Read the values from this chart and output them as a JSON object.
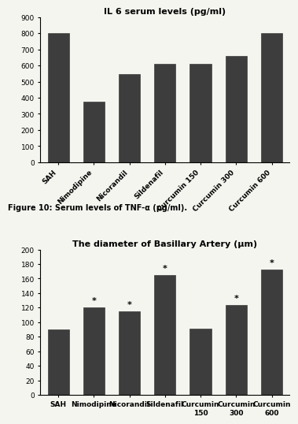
{
  "chart1": {
    "title": "IL 6 serum levels (pg/ml)",
    "categories": [
      "SAH",
      "Nimodipine",
      "Nicorandil",
      "Sildenafil",
      "Curcumin 150",
      "Curcumin 300",
      "Curcumin 600"
    ],
    "values": [
      800,
      375,
      545,
      610,
      610,
      660,
      800
    ],
    "ylim": [
      0,
      900
    ],
    "yticks": [
      0,
      100,
      200,
      300,
      400,
      500,
      600,
      700,
      800,
      900
    ],
    "bar_color": "#3d3d3d",
    "bar_edge_color": "#3d3d3d",
    "caption": "Figure 10: Serum levels of TNF-α (pg/ml)."
  },
  "chart2": {
    "title": "The diameter of Basillary Artery (μm)",
    "categories": [
      "SAH",
      "Nimodipine",
      "Nicorandil",
      "Sildenafil",
      "Curcumin\n150",
      "Curcumin\n300",
      "Curcumin\n600"
    ],
    "values": [
      90,
      120,
      115,
      165,
      91,
      124,
      172
    ],
    "stars": [
      false,
      true,
      true,
      true,
      false,
      true,
      true
    ],
    "ylim": [
      0,
      200
    ],
    "yticks": [
      0,
      20,
      40,
      60,
      80,
      100,
      120,
      140,
      160,
      180,
      200
    ],
    "bar_color": "#3d3d3d",
    "bar_edge_color": "#3d3d3d"
  },
  "bg_color": "#f5f5f0"
}
